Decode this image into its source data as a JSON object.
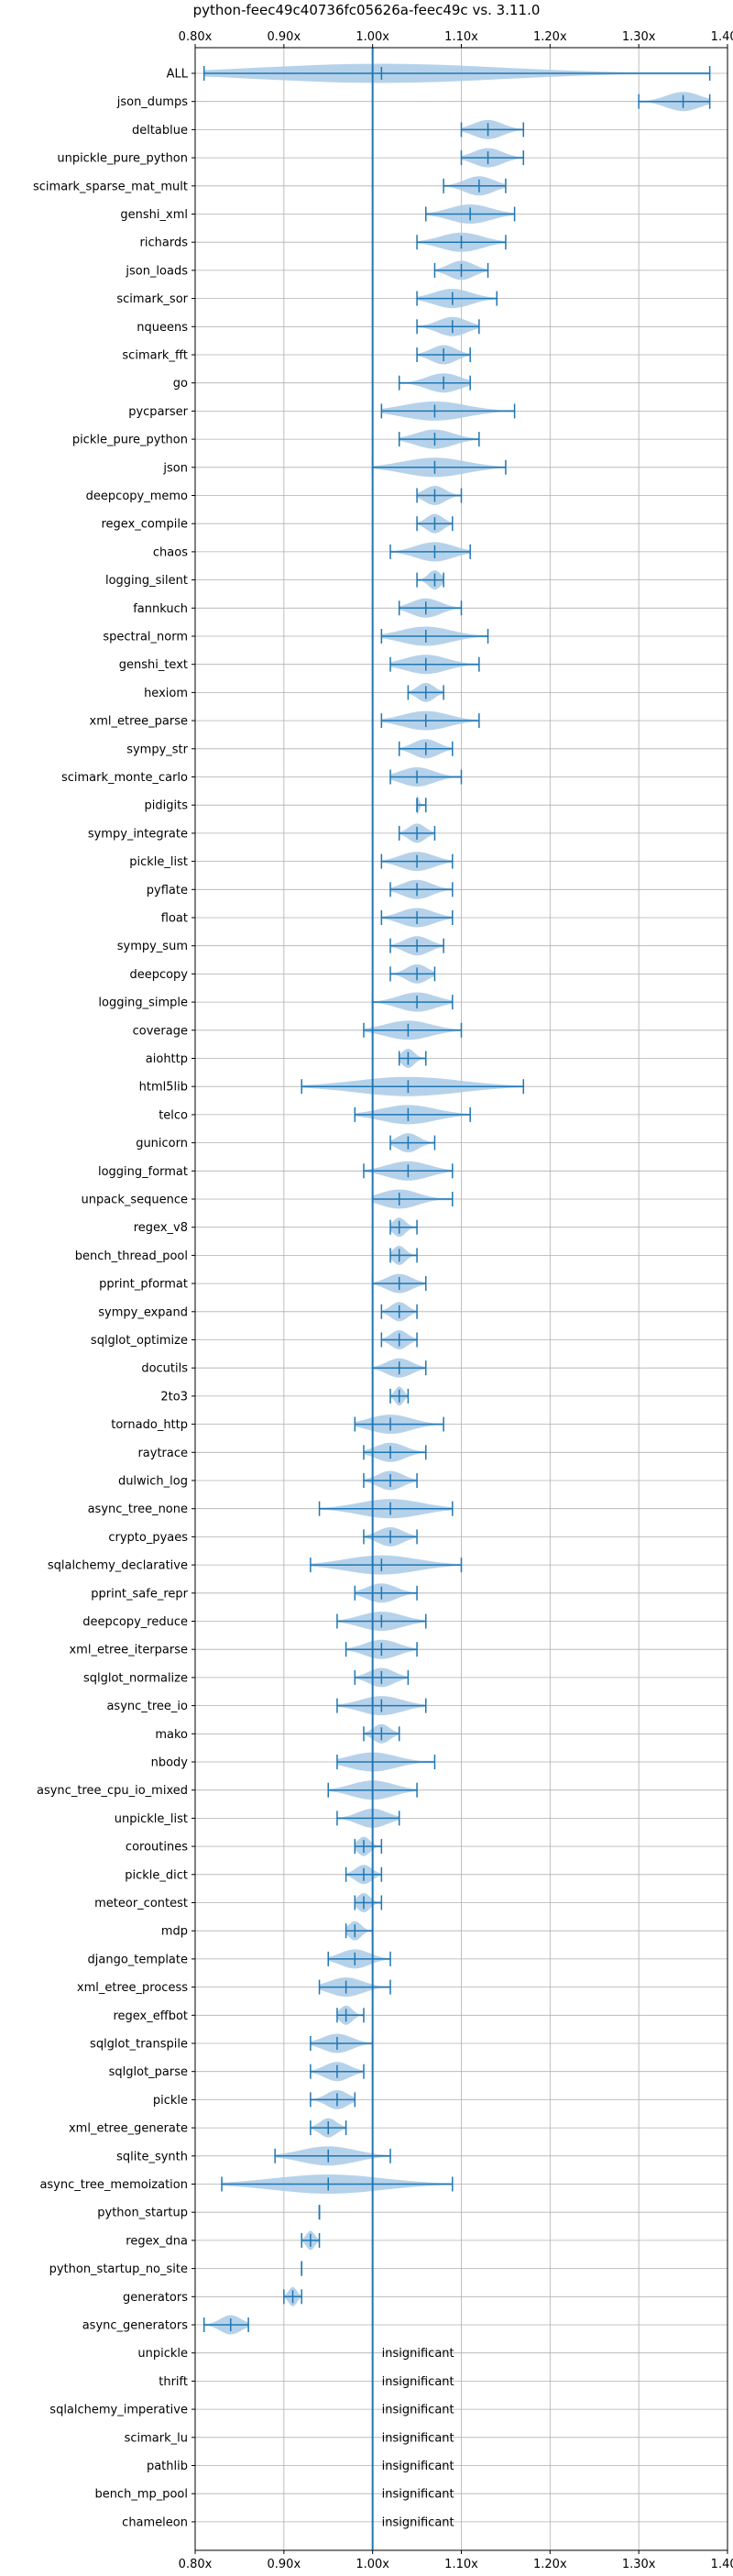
{
  "chart_data": {
    "type": "violin",
    "title": "python-feec49c40736fc05626a-feec49c vs. 3.11.0",
    "xlim": [
      0.8,
      1.4
    ],
    "xticks": [
      "0.80x",
      "0.90x",
      "1.00x",
      "1.10x",
      "1.20x",
      "1.30x",
      "1.40x"
    ],
    "xtick_values": [
      0.8,
      0.9,
      1.0,
      1.1,
      1.2,
      1.3,
      1.4
    ],
    "reference_line": 1.0,
    "grid": true,
    "colors": {
      "violin": "#a9cae6",
      "line": "#1f77b4"
    },
    "insignificant_label": "insignificant",
    "benchmarks": [
      {
        "name": "ALL",
        "min": 0.81,
        "max": 1.38,
        "median": 1.01
      },
      {
        "name": "json_dumps",
        "min": 1.3,
        "max": 1.38,
        "median": 1.35
      },
      {
        "name": "deltablue",
        "min": 1.1,
        "max": 1.17,
        "median": 1.13
      },
      {
        "name": "unpickle_pure_python",
        "min": 1.1,
        "max": 1.17,
        "median": 1.13
      },
      {
        "name": "scimark_sparse_mat_mult",
        "min": 1.08,
        "max": 1.15,
        "median": 1.12
      },
      {
        "name": "genshi_xml",
        "min": 1.06,
        "max": 1.16,
        "median": 1.11
      },
      {
        "name": "richards",
        "min": 1.05,
        "max": 1.15,
        "median": 1.1
      },
      {
        "name": "json_loads",
        "min": 1.07,
        "max": 1.13,
        "median": 1.1
      },
      {
        "name": "scimark_sor",
        "min": 1.05,
        "max": 1.14,
        "median": 1.09
      },
      {
        "name": "nqueens",
        "min": 1.05,
        "max": 1.12,
        "median": 1.09
      },
      {
        "name": "scimark_fft",
        "min": 1.05,
        "max": 1.11,
        "median": 1.08
      },
      {
        "name": "go",
        "min": 1.03,
        "max": 1.11,
        "median": 1.08
      },
      {
        "name": "pycparser",
        "min": 1.01,
        "max": 1.16,
        "median": 1.07
      },
      {
        "name": "pickle_pure_python",
        "min": 1.03,
        "max": 1.12,
        "median": 1.07
      },
      {
        "name": "json",
        "min": 1.0,
        "max": 1.15,
        "median": 1.07
      },
      {
        "name": "deepcopy_memo",
        "min": 1.05,
        "max": 1.1,
        "median": 1.07
      },
      {
        "name": "regex_compile",
        "min": 1.05,
        "max": 1.09,
        "median": 1.07
      },
      {
        "name": "chaos",
        "min": 1.02,
        "max": 1.11,
        "median": 1.07
      },
      {
        "name": "logging_silent",
        "min": 1.05,
        "max": 1.08,
        "median": 1.07
      },
      {
        "name": "fannkuch",
        "min": 1.03,
        "max": 1.1,
        "median": 1.06
      },
      {
        "name": "spectral_norm",
        "min": 1.01,
        "max": 1.13,
        "median": 1.06
      },
      {
        "name": "genshi_text",
        "min": 1.02,
        "max": 1.12,
        "median": 1.06
      },
      {
        "name": "hexiom",
        "min": 1.04,
        "max": 1.08,
        "median": 1.06
      },
      {
        "name": "xml_etree_parse",
        "min": 1.01,
        "max": 1.12,
        "median": 1.06
      },
      {
        "name": "sympy_str",
        "min": 1.03,
        "max": 1.09,
        "median": 1.06
      },
      {
        "name": "scimark_monte_carlo",
        "min": 1.02,
        "max": 1.1,
        "median": 1.05
      },
      {
        "name": "pidigits",
        "min": 1.05,
        "max": 1.06,
        "median": 1.05
      },
      {
        "name": "sympy_integrate",
        "min": 1.03,
        "max": 1.07,
        "median": 1.05
      },
      {
        "name": "pickle_list",
        "min": 1.01,
        "max": 1.09,
        "median": 1.05
      },
      {
        "name": "pyflate",
        "min": 1.02,
        "max": 1.09,
        "median": 1.05
      },
      {
        "name": "float",
        "min": 1.01,
        "max": 1.09,
        "median": 1.05
      },
      {
        "name": "sympy_sum",
        "min": 1.02,
        "max": 1.08,
        "median": 1.05
      },
      {
        "name": "deepcopy",
        "min": 1.02,
        "max": 1.07,
        "median": 1.05
      },
      {
        "name": "logging_simple",
        "min": 1.0,
        "max": 1.09,
        "median": 1.05
      },
      {
        "name": "coverage",
        "min": 0.99,
        "max": 1.1,
        "median": 1.04
      },
      {
        "name": "aiohttp",
        "min": 1.03,
        "max": 1.06,
        "median": 1.04
      },
      {
        "name": "html5lib",
        "min": 0.92,
        "max": 1.17,
        "median": 1.04
      },
      {
        "name": "telco",
        "min": 0.98,
        "max": 1.11,
        "median": 1.04
      },
      {
        "name": "gunicorn",
        "min": 1.02,
        "max": 1.07,
        "median": 1.04
      },
      {
        "name": "logging_format",
        "min": 0.99,
        "max": 1.09,
        "median": 1.04
      },
      {
        "name": "unpack_sequence",
        "min": 1.0,
        "max": 1.09,
        "median": 1.03
      },
      {
        "name": "regex_v8",
        "min": 1.02,
        "max": 1.05,
        "median": 1.03
      },
      {
        "name": "bench_thread_pool",
        "min": 1.02,
        "max": 1.05,
        "median": 1.03
      },
      {
        "name": "pprint_pformat",
        "min": 1.0,
        "max": 1.06,
        "median": 1.03
      },
      {
        "name": "sympy_expand",
        "min": 1.01,
        "max": 1.05,
        "median": 1.03
      },
      {
        "name": "sqlglot_optimize",
        "min": 1.01,
        "max": 1.05,
        "median": 1.03
      },
      {
        "name": "docutils",
        "min": 1.0,
        "max": 1.06,
        "median": 1.03
      },
      {
        "name": "2to3",
        "min": 1.02,
        "max": 1.04,
        "median": 1.03
      },
      {
        "name": "tornado_http",
        "min": 0.98,
        "max": 1.08,
        "median": 1.02
      },
      {
        "name": "raytrace",
        "min": 0.99,
        "max": 1.06,
        "median": 1.02
      },
      {
        "name": "dulwich_log",
        "min": 0.99,
        "max": 1.05,
        "median": 1.02
      },
      {
        "name": "async_tree_none",
        "min": 0.94,
        "max": 1.09,
        "median": 1.02
      },
      {
        "name": "crypto_pyaes",
        "min": 0.99,
        "max": 1.05,
        "median": 1.02
      },
      {
        "name": "sqlalchemy_declarative",
        "min": 0.93,
        "max": 1.1,
        "median": 1.01
      },
      {
        "name": "pprint_safe_repr",
        "min": 0.98,
        "max": 1.05,
        "median": 1.01
      },
      {
        "name": "deepcopy_reduce",
        "min": 0.96,
        "max": 1.06,
        "median": 1.01
      },
      {
        "name": "xml_etree_iterparse",
        "min": 0.97,
        "max": 1.05,
        "median": 1.01
      },
      {
        "name": "sqlglot_normalize",
        "min": 0.98,
        "max": 1.04,
        "median": 1.01
      },
      {
        "name": "async_tree_io",
        "min": 0.96,
        "max": 1.06,
        "median": 1.01
      },
      {
        "name": "mako",
        "min": 0.99,
        "max": 1.03,
        "median": 1.01
      },
      {
        "name": "nbody",
        "min": 0.96,
        "max": 1.07,
        "median": 1.0
      },
      {
        "name": "async_tree_cpu_io_mixed",
        "min": 0.95,
        "max": 1.05,
        "median": 1.0
      },
      {
        "name": "unpickle_list",
        "min": 0.96,
        "max": 1.03,
        "median": 1.0
      },
      {
        "name": "coroutines",
        "min": 0.98,
        "max": 1.01,
        "median": 0.99
      },
      {
        "name": "pickle_dict",
        "min": 0.97,
        "max": 1.01,
        "median": 0.99
      },
      {
        "name": "meteor_contest",
        "min": 0.98,
        "max": 1.01,
        "median": 0.99
      },
      {
        "name": "mdp",
        "min": 0.97,
        "max": 1.0,
        "median": 0.98
      },
      {
        "name": "django_template",
        "min": 0.95,
        "max": 1.02,
        "median": 0.98
      },
      {
        "name": "xml_etree_process",
        "min": 0.94,
        "max": 1.02,
        "median": 0.97
      },
      {
        "name": "regex_effbot",
        "min": 0.96,
        "max": 0.99,
        "median": 0.97
      },
      {
        "name": "sqlglot_transpile",
        "min": 0.93,
        "max": 1.0,
        "median": 0.96
      },
      {
        "name": "sqlglot_parse",
        "min": 0.93,
        "max": 0.99,
        "median": 0.96
      },
      {
        "name": "pickle",
        "min": 0.93,
        "max": 0.98,
        "median": 0.96
      },
      {
        "name": "xml_etree_generate",
        "min": 0.93,
        "max": 0.97,
        "median": 0.95
      },
      {
        "name": "sqlite_synth",
        "min": 0.89,
        "max": 1.02,
        "median": 0.95
      },
      {
        "name": "async_tree_memoization",
        "min": 0.83,
        "max": 1.09,
        "median": 0.95
      },
      {
        "name": "python_startup",
        "min": 0.94,
        "max": 0.94,
        "median": 0.94
      },
      {
        "name": "regex_dna",
        "min": 0.92,
        "max": 0.94,
        "median": 0.93
      },
      {
        "name": "python_startup_no_site",
        "min": 0.92,
        "max": 0.92,
        "median": 0.92
      },
      {
        "name": "generators",
        "min": 0.9,
        "max": 0.92,
        "median": 0.91
      },
      {
        "name": "async_generators",
        "min": 0.81,
        "max": 0.86,
        "median": 0.84
      },
      {
        "name": "unpickle",
        "insignificant": true
      },
      {
        "name": "thrift",
        "insignificant": true
      },
      {
        "name": "sqlalchemy_imperative",
        "insignificant": true
      },
      {
        "name": "scimark_lu",
        "insignificant": true
      },
      {
        "name": "pathlib",
        "insignificant": true
      },
      {
        "name": "bench_mp_pool",
        "insignificant": true
      },
      {
        "name": "chameleon",
        "insignificant": true
      }
    ]
  }
}
